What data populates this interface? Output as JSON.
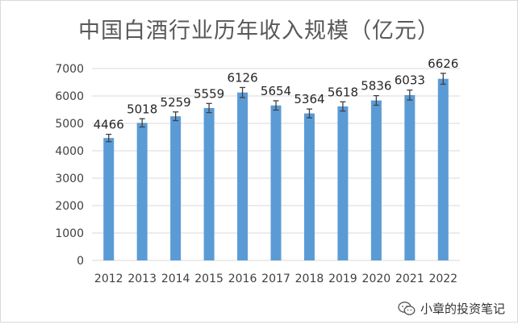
{
  "chart_data": {
    "type": "bar",
    "title": "中国白酒行业历年收入规模（亿元）",
    "categories": [
      "2012",
      "2013",
      "2014",
      "2015",
      "2016",
      "2017",
      "2018",
      "2019",
      "2020",
      "2021",
      "2022"
    ],
    "values": [
      4466,
      5018,
      5259,
      5559,
      6126,
      5654,
      5364,
      5618,
      5836,
      6033,
      6626
    ],
    "error_bars": true,
    "ylim": [
      0,
      7000
    ],
    "yticks": [
      0,
      1000,
      2000,
      3000,
      4000,
      5000,
      6000,
      7000
    ],
    "grid": true,
    "legend": "none",
    "xlabel": "",
    "ylabel": "",
    "colors": {
      "bar": "#5b9bd5",
      "grid": "#d9d9d9",
      "text": "#595959"
    }
  },
  "watermark": {
    "icon": "wechat-icon",
    "text": "小章的投资笔记"
  }
}
